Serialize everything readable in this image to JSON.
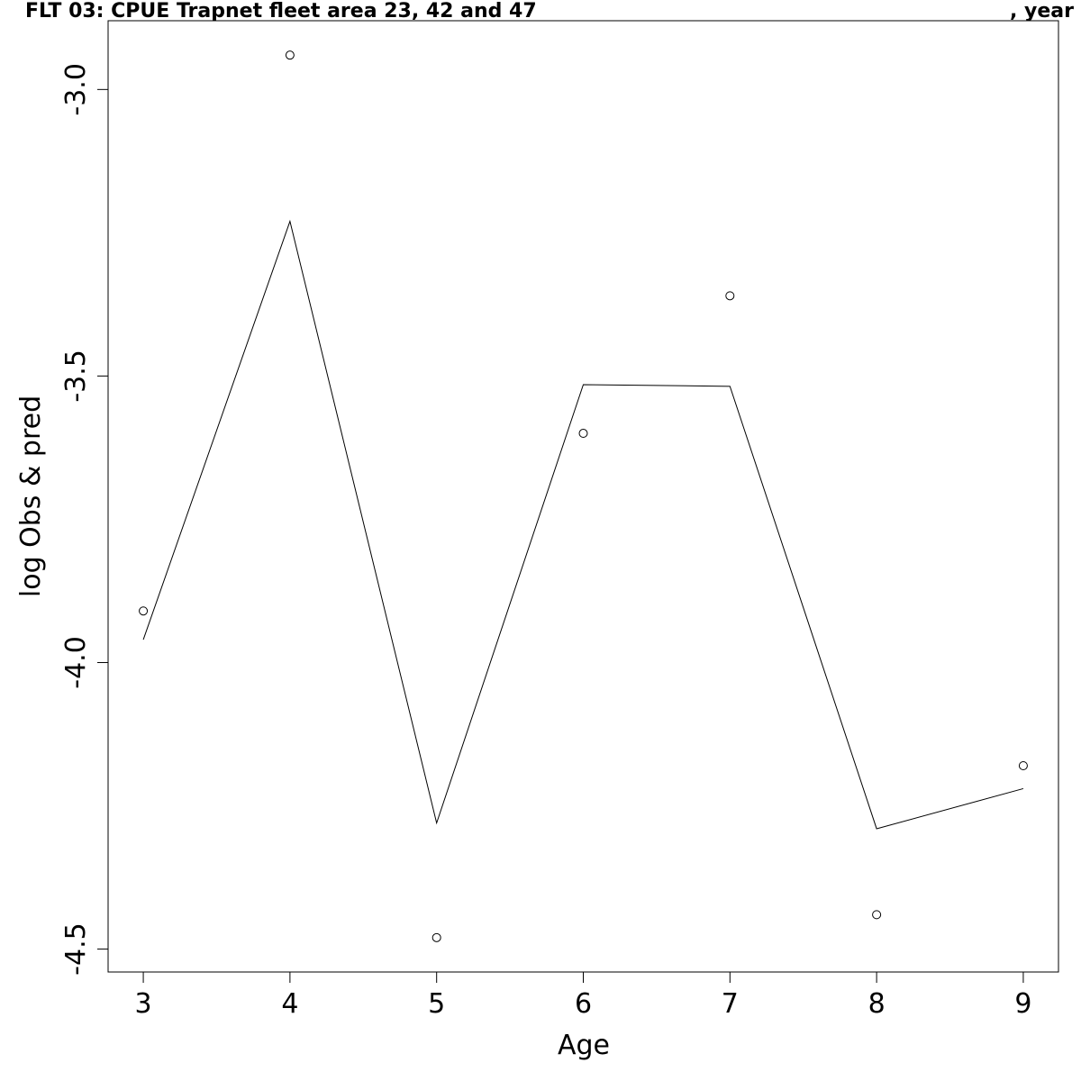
{
  "chart_data": {
    "type": "line",
    "title": "FLT 03: CPUE Trapnet fleet area 23, 42 and 47",
    "title_suffix": ", year",
    "xlabel": "Age",
    "ylabel": "log Obs & pred",
    "xlim": [
      2.76,
      9.24
    ],
    "ylim": [
      -4.54,
      -2.88
    ],
    "x_ticks": [
      3,
      4,
      5,
      6,
      7,
      8,
      9
    ],
    "x_tick_labels": [
      "3",
      "4",
      "5",
      "6",
      "7",
      "8",
      "9"
    ],
    "y_ticks": [
      -4.5,
      -4.0,
      -3.5,
      -3.0
    ],
    "y_tick_labels": [
      "-4.5",
      "-4.0",
      "-3.5",
      "-3.0"
    ],
    "grid": false,
    "series": [
      {
        "type": "points",
        "marker": "open-circle",
        "x": [
          3,
          4,
          5,
          6,
          7,
          8,
          9
        ],
        "values": [
          -3.91,
          -2.94,
          -4.48,
          -3.6,
          -3.36,
          -4.44,
          -4.18
        ]
      },
      {
        "type": "line",
        "x": [
          3,
          4,
          5,
          6,
          7,
          8,
          9
        ],
        "values": [
          -3.96,
          -3.23,
          -4.28,
          -3.515,
          -3.518,
          -4.29,
          -4.22
        ]
      }
    ]
  }
}
